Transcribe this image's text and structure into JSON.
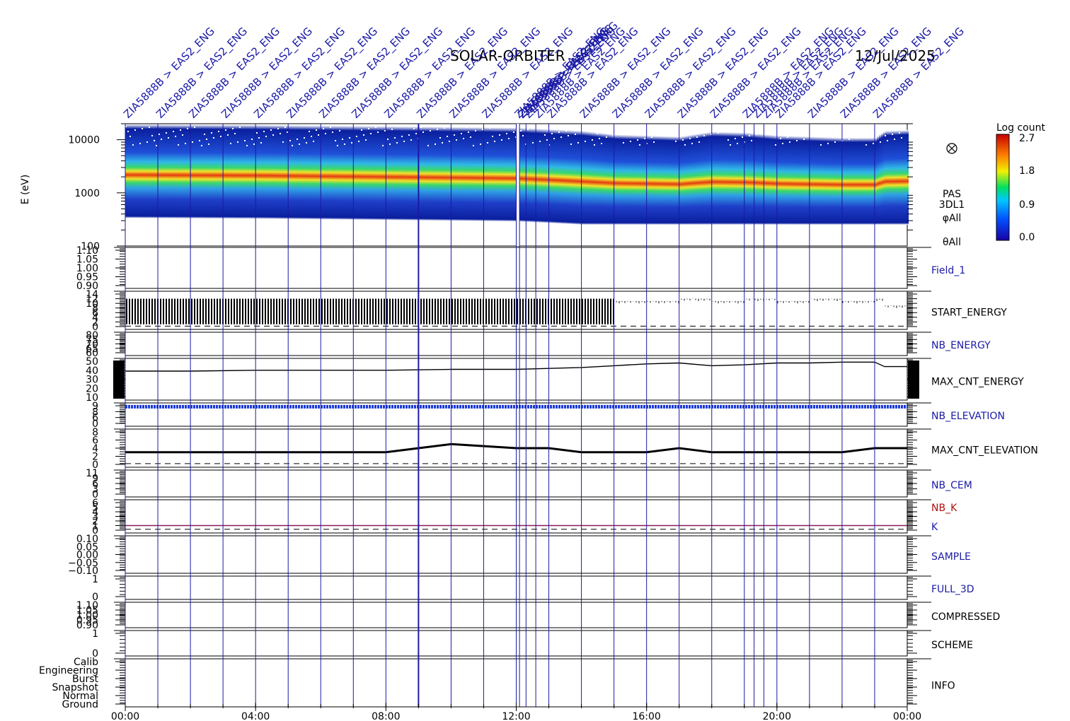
{
  "header": {
    "mission": "SOLAR-ORBITER",
    "date": "12/Jul/2025"
  },
  "colorbar": {
    "title": "Log count",
    "ticks": [
      "2.7",
      "1.8",
      "0.9",
      "0.0"
    ]
  },
  "event_labels": {
    "text": "ZIA5888B > EAS2_ENG",
    "hours": [
      0,
      1,
      2,
      3,
      4,
      5,
      6,
      7,
      8,
      9,
      10,
      11,
      12,
      12.1,
      12.3,
      12.6,
      13,
      14,
      15,
      16,
      17,
      18,
      19,
      19.3,
      19.6,
      20,
      21,
      22,
      23
    ],
    "overlap_marks": [
      "ZIA5888B > EAS2_ENG",
      "ZIA5888B > EAS2_ENG",
      "ZIA5888B > EAS2_ENG"
    ]
  },
  "chart_data": {
    "type": "line",
    "x_axis": {
      "label": "",
      "ticks": [
        "00:00",
        "04:00",
        "08:00",
        "12:00",
        "16:00",
        "20:00",
        "00:00"
      ],
      "range_hours": [
        0,
        24
      ]
    },
    "event_lines_hours": [
      0,
      1,
      2,
      3,
      4,
      5,
      6,
      7,
      8,
      9,
      10,
      11,
      12,
      12.1,
      12.3,
      12.6,
      13,
      14,
      15,
      16,
      17,
      18,
      19,
      19.3,
      19.6,
      20,
      21,
      22,
      23
    ],
    "panels": [
      {
        "name": "spectrogram",
        "type": "heatmap",
        "ylabel": "E (eV)",
        "yscale": "log",
        "yticks": [
          "10000",
          "1000",
          "100"
        ],
        "ylim": [
          100,
          20000
        ],
        "right_labels": [
          "PAS",
          "3DL1",
          "φAll",
          "θAll"
        ],
        "peak_energy_ev": [
          {
            "h": 0,
            "e": 1800
          },
          {
            "h": 4,
            "e": 1750
          },
          {
            "h": 8,
            "e": 1650
          },
          {
            "h": 12,
            "e": 1550
          },
          {
            "h": 14,
            "e": 1350
          },
          {
            "h": 15,
            "e": 1150
          },
          {
            "h": 16,
            "e": 1100
          },
          {
            "h": 17,
            "e": 1050
          },
          {
            "h": 18,
            "e": 1300
          },
          {
            "h": 19,
            "e": 1250
          },
          {
            "h": 20,
            "e": 1100
          },
          {
            "h": 21,
            "e": 1050
          },
          {
            "h": 22,
            "e": 1000
          },
          {
            "h": 23,
            "e": 1000
          },
          {
            "h": 23.3,
            "e": 1350
          },
          {
            "h": 24,
            "e": 1400
          }
        ]
      },
      {
        "name": "Field_1",
        "label": "Field_1",
        "label_color": "blue",
        "yticks": [
          "1.10",
          "1.05",
          "1.00",
          "0.95",
          "0.90"
        ],
        "ylim": [
          0.9,
          1.1
        ]
      },
      {
        "name": "START_ENERGY",
        "label": "START_ENERGY",
        "label_color": "black",
        "yticks": [
          "14",
          "12",
          "10",
          "8",
          "6",
          "4",
          "2",
          "0"
        ],
        "ylim": [
          0,
          14
        ],
        "series": [
          {
            "x": [
              0,
              4,
              8,
              12,
              14,
              15,
              16,
              17,
              18,
              19,
              20,
              21,
              22,
              23,
              23.3,
              24
            ],
            "y": [
              6,
              6,
              6,
              6,
              6,
              11,
              11,
              12,
              11,
              12,
              11,
              12,
              11,
              12,
              9,
              9
            ]
          }
        ]
      },
      {
        "name": "NB_ENERGY",
        "label": "NB_ENERGY",
        "label_color": "blue",
        "yticks": [
          "80",
          "75",
          "70",
          "65",
          "60"
        ],
        "ylim": [
          60,
          80
        ]
      },
      {
        "name": "MAX_CNT_ENERGY",
        "label": "MAX_CNT_ENERGY",
        "label_color": "black",
        "yticks": [
          "50",
          "40",
          "30",
          "20",
          "10"
        ],
        "ylim": [
          10,
          50
        ],
        "series": [
          {
            "x": [
              0,
              2,
              4,
              6,
              8,
              10,
              12,
              13,
              14,
              15,
              16,
              17,
              18,
              19,
              20,
              21,
              22,
              23,
              23.3,
              24
            ],
            "y": [
              39,
              39,
              40,
              40,
              40,
              41,
              41,
              42,
              43,
              45,
              47,
              48,
              45,
              46,
              48,
              48,
              49,
              49,
              44,
              44
            ]
          }
        ]
      },
      {
        "name": "NB_ELEVATION",
        "label": "NB_ELEVATION",
        "label_color": "blue",
        "yticks": [
          "9",
          "8",
          "6",
          "0"
        ],
        "ylim": [
          0,
          9
        ],
        "constant": 8.5
      },
      {
        "name": "MAX_CNT_ELEVATION",
        "label": "MAX_CNT_ELEVATION",
        "label_color": "black",
        "yticks": [
          "8",
          "6",
          "4",
          "2",
          "0"
        ],
        "ylim": [
          0,
          8
        ],
        "series": [
          {
            "x": [
              0,
              4,
              8,
              9,
              10,
              12,
              13,
              14,
              15,
              16,
              17,
              18,
              19,
              20,
              21,
              22,
              23,
              24
            ],
            "y": [
              3,
              3,
              3,
              4,
              5,
              4,
              4,
              3,
              3,
              3,
              4,
              3,
              3,
              3,
              3,
              3,
              4,
              4
            ]
          }
        ]
      },
      {
        "name": "NB_CEM",
        "label": "NB_CEM",
        "label_color": "blue",
        "yticks": [
          "11",
          "9",
          "6",
          "3",
          "0"
        ],
        "ylim": [
          0,
          11
        ]
      },
      {
        "name": "NB_K",
        "label": "NB_K",
        "label_color": "red",
        "second_label": "K",
        "second_label_color": "blue",
        "yticks": [
          "6",
          "5",
          "4",
          "3",
          "2",
          "1",
          "0"
        ],
        "ylim": [
          0,
          6
        ],
        "constant": 1
      },
      {
        "name": "SAMPLE",
        "label": "SAMPLE",
        "label_color": "blue",
        "yticks": [
          "0.10",
          "0.05",
          "0.00",
          "−0.05",
          "−0.10"
        ],
        "ylim": [
          -0.1,
          0.1
        ]
      },
      {
        "name": "FULL_3D",
        "label": "FULL_3D",
        "label_color": "blue",
        "yticks": [
          "1",
          "0"
        ],
        "ylim": [
          0,
          1
        ]
      },
      {
        "name": "COMPRESSED",
        "label": "COMPRESSED",
        "label_color": "black",
        "yticks": [
          "1.10",
          "1.05",
          "1.00",
          "0.95",
          "0.90"
        ],
        "ylim": [
          0.9,
          1.1
        ]
      },
      {
        "name": "SCHEME",
        "label": "SCHEME",
        "label_color": "black",
        "yticks": [
          "1",
          "0"
        ],
        "ylim": [
          0,
          1
        ]
      },
      {
        "name": "INFO",
        "label": "INFO",
        "label_color": "black",
        "yticks": [
          "Calib",
          "Engineering",
          "Burst",
          "Snapshot",
          "Normal",
          "Ground"
        ]
      }
    ]
  }
}
